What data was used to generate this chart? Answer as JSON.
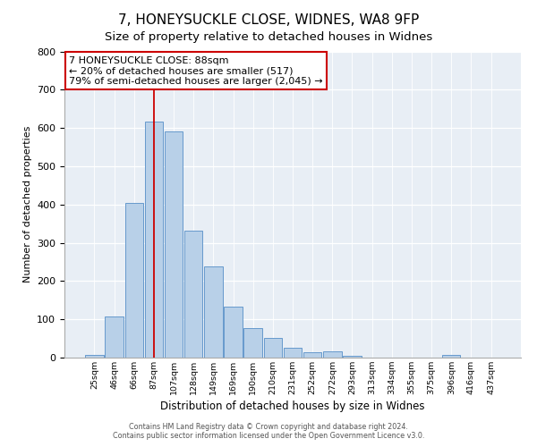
{
  "title": "7, HONEYSUCKLE CLOSE, WIDNES, WA8 9FP",
  "subtitle": "Size of property relative to detached houses in Widnes",
  "xlabel": "Distribution of detached houses by size in Widnes",
  "ylabel": "Number of detached properties",
  "bar_labels": [
    "25sqm",
    "46sqm",
    "66sqm",
    "87sqm",
    "107sqm",
    "128sqm",
    "149sqm",
    "169sqm",
    "190sqm",
    "210sqm",
    "231sqm",
    "252sqm",
    "272sqm",
    "293sqm",
    "313sqm",
    "334sqm",
    "355sqm",
    "375sqm",
    "396sqm",
    "416sqm",
    "437sqm"
  ],
  "bar_values": [
    8,
    107,
    404,
    617,
    591,
    331,
    238,
    133,
    77,
    51,
    26,
    13,
    17,
    4,
    0,
    0,
    0,
    0,
    8,
    0,
    0
  ],
  "bar_color": "#b8d0e8",
  "bar_edge_color": "#6699cc",
  "vline_x": 3.0,
  "vline_color": "#cc0000",
  "annotation_line1": "7 HONEYSUCKLE CLOSE: 88sqm",
  "annotation_line2": "← 20% of detached houses are smaller (517)",
  "annotation_line3": "79% of semi-detached houses are larger (2,045) →",
  "annotation_box_facecolor": "#ffffff",
  "annotation_box_edgecolor": "#cc0000",
  "ylim": [
    0,
    800
  ],
  "yticks": [
    0,
    100,
    200,
    300,
    400,
    500,
    600,
    700,
    800
  ],
  "bg_color": "#ffffff",
  "plot_bg_color": "#e8eef5",
  "grid_color": "#ffffff",
  "footer1": "Contains HM Land Registry data © Crown copyright and database right 2024.",
  "footer2": "Contains public sector information licensed under the Open Government Licence v3.0.",
  "title_fontsize": 11,
  "subtitle_fontsize": 9.5
}
